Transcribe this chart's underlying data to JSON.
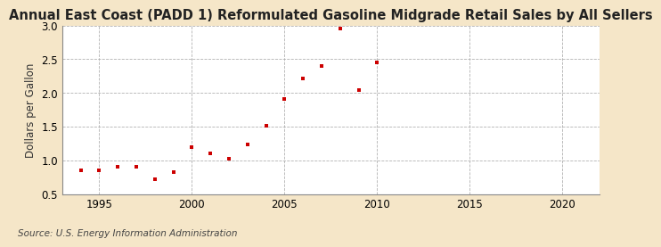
{
  "title": "Annual East Coast (PADD 1) Reformulated Gasoline Midgrade Retail Sales by All Sellers",
  "ylabel": "Dollars per Gallon",
  "source": "Source: U.S. Energy Information Administration",
  "fig_background_color": "#f5e6c8",
  "plot_background_color": "#ffffff",
  "marker_color": "#cc0000",
  "years": [
    1994,
    1995,
    1996,
    1997,
    1998,
    1999,
    2000,
    2001,
    2002,
    2003,
    2004,
    2005,
    2006,
    2007,
    2008,
    2009,
    2010
  ],
  "values": [
    0.85,
    0.85,
    0.9,
    0.9,
    0.72,
    0.82,
    1.19,
    1.11,
    1.02,
    1.24,
    1.52,
    1.91,
    2.22,
    2.4,
    2.95,
    2.04,
    2.45
  ],
  "ylim": [
    0.5,
    3.0
  ],
  "xlim": [
    1993,
    2022
  ],
  "yticks": [
    0.5,
    1.0,
    1.5,
    2.0,
    2.5,
    3.0
  ],
  "xticks": [
    1995,
    2000,
    2005,
    2010,
    2015,
    2020
  ],
  "title_fontsize": 10.5,
  "label_fontsize": 8.5,
  "tick_fontsize": 8.5,
  "source_fontsize": 7.5,
  "grid_color": "#aaaaaa",
  "spine_color": "#888888"
}
